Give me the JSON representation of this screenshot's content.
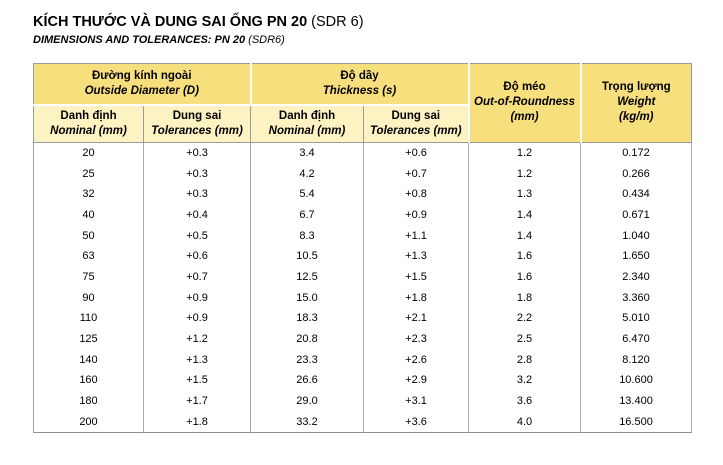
{
  "title": {
    "main": "KÍCH THƯỚC VÀ DUNG SAI ỐNG PN 20",
    "suffix": " (SDR 6)",
    "sub_main": "DIMENSIONS AND TOLERANCES: PN 20",
    "sub_suffix": " (SDR6)"
  },
  "table": {
    "groups": [
      {
        "vi": "Đường kính ngoài",
        "en": "Outside Diameter (D)"
      },
      {
        "vi": "Độ dầy",
        "en": "Thickness (s)"
      }
    ],
    "subheaders": [
      {
        "vi": "Danh định",
        "en": "Nominal (mm)"
      },
      {
        "vi": "Dung sai",
        "en": "Tolerances (mm)"
      },
      {
        "vi": "Danh định",
        "en": "Nominal (mm)"
      },
      {
        "vi": "Dung sai",
        "en": "Tolerances (mm)"
      }
    ],
    "span_columns": [
      {
        "vi": "Độ méo",
        "en": "Out-of-Roundness",
        "unit": "(mm)"
      },
      {
        "vi": "Trọng lượng",
        "en": "Weight",
        "unit": "(kg/m)"
      }
    ],
    "rows": [
      [
        "20",
        "+0.3",
        "3.4",
        "+0.6",
        "1.2",
        "0.172"
      ],
      [
        "25",
        "+0.3",
        "4.2",
        "+0.7",
        "1.2",
        "0.266"
      ],
      [
        "32",
        "+0.3",
        "5.4",
        "+0.8",
        "1.3",
        "0.434"
      ],
      [
        "40",
        "+0.4",
        "6.7",
        "+0.9",
        "1.4",
        "0.671"
      ],
      [
        "50",
        "+0.5",
        "8.3",
        "+1.1",
        "1.4",
        "1.040"
      ],
      [
        "63",
        "+0.6",
        "10.5",
        "+1.3",
        "1.6",
        "1.650"
      ],
      [
        "75",
        "+0.7",
        "12.5",
        "+1.5",
        "1.6",
        "2.340"
      ],
      [
        "90",
        "+0.9",
        "15.0",
        "+1.8",
        "1.8",
        "3.360"
      ],
      [
        "110",
        "+0.9",
        "18.3",
        "+2.1",
        "2.2",
        "5.010"
      ],
      [
        "125",
        "+1.2",
        "20.8",
        "+2.3",
        "2.5",
        "6.470"
      ],
      [
        "140",
        "+1.3",
        "23.3",
        "+2.6",
        "2.8",
        "8.120"
      ],
      [
        "160",
        "+1.5",
        "26.6",
        "+2.9",
        "3.2",
        "10.600"
      ],
      [
        "180",
        "+1.7",
        "29.0",
        "+3.1",
        "3.6",
        "13.400"
      ],
      [
        "200",
        "+1.8",
        "33.2",
        "+3.6",
        "4.0",
        "16.500"
      ]
    ]
  },
  "colors": {
    "header_dark_yellow": "#F8DF7D",
    "header_light_yellow": "#FCF2C2",
    "border_gray": "#9B9B9B",
    "text": "#000000"
  }
}
